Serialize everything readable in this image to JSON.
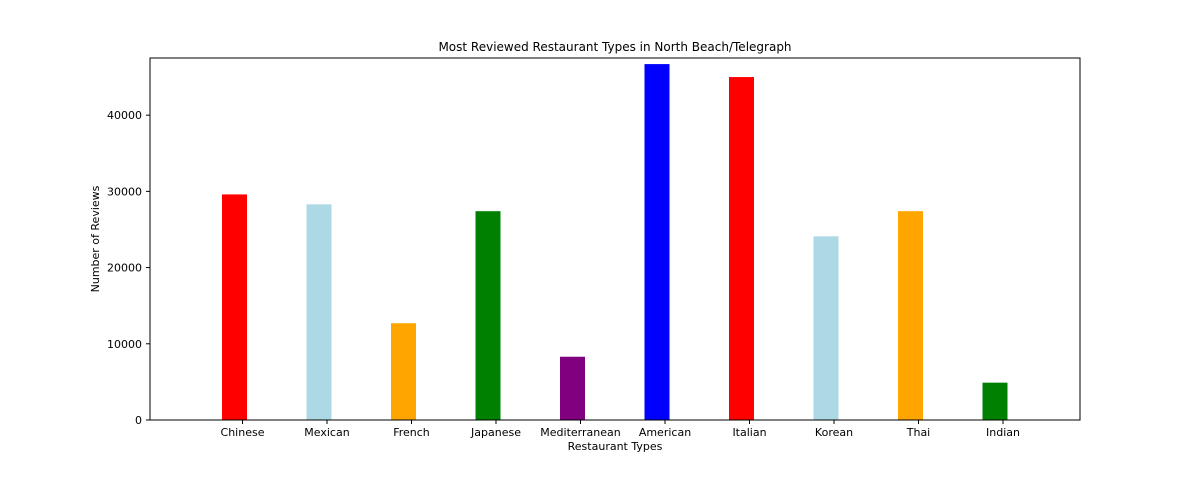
{
  "chart_data": {
    "type": "bar",
    "title": "Most Reviewed Restaurant Types in North Beach/Telegraph",
    "xlabel": "Restaurant Types",
    "ylabel": "Number of Reviews",
    "categories": [
      "Chinese",
      "Mexican",
      "French",
      "Japanese",
      "Mediterranean",
      "American",
      "Italian",
      "Korean",
      "Thai",
      "Indian"
    ],
    "values": [
      29600,
      28300,
      12700,
      27400,
      8300,
      46700,
      45000,
      24100,
      27400,
      4900
    ],
    "colors": [
      "#ff0000",
      "#add8e6",
      "#ffa500",
      "#008000",
      "#800080",
      "#0000ff",
      "#ff0000",
      "#add8e6",
      "#ffa500",
      "#008000"
    ],
    "ylim": [
      0,
      47500
    ],
    "yticks": [
      0,
      10000,
      20000,
      30000,
      40000
    ],
    "ytick_labels": [
      "0",
      "10000",
      "20000",
      "30000",
      "40000"
    ],
    "grid": false,
    "legend": "none"
  }
}
